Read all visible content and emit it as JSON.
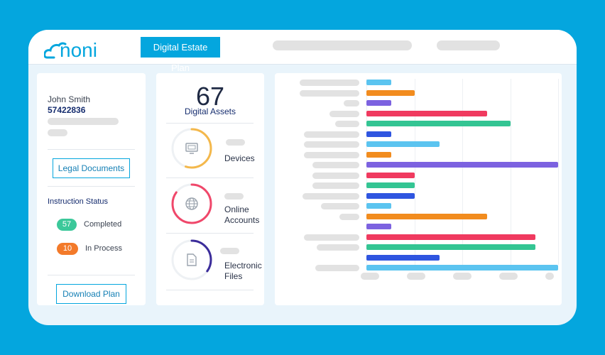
{
  "app": {
    "logo_text": "noni",
    "title": "Digital Estate Plan",
    "brand_color": "#04a6de"
  },
  "user": {
    "name": "John Smith",
    "id": "57422836"
  },
  "actions": {
    "legal_documents": "Legal Documents",
    "download_plan": "Download Plan"
  },
  "instruction_status": {
    "heading": "Instruction Status",
    "items": [
      {
        "count": "57",
        "label": "Completed",
        "color": "#3cc89a"
      },
      {
        "count": "10",
        "label": "In Process",
        "color": "#f37a2a"
      }
    ]
  },
  "assets": {
    "total": "67",
    "total_label": "Digital Assets",
    "categories": [
      {
        "label_line1": "Devices",
        "label_line2": "",
        "icon": "monitor-icon",
        "color": "#f4b84b",
        "fraction": 0.55
      },
      {
        "label_line1": "Online",
        "label_line2": "Accounts",
        "icon": "globe-icon",
        "color": "#f0476a",
        "fraction": 0.85
      },
      {
        "label_line1": "Electronic",
        "label_line2": "Files",
        "icon": "document-icon",
        "color": "#3b2c9a",
        "fraction": 0.35
      }
    ]
  },
  "chart_data": {
    "type": "bar",
    "orientation": "horizontal",
    "grid": true,
    "xlim": [
      0,
      1
    ],
    "values": [
      {
        "value": 0.13,
        "color": "#5bc4f0"
      },
      {
        "value": 0.25,
        "color": "#f28c1e"
      },
      {
        "value": 0.13,
        "color": "#7c62e0"
      },
      {
        "value": 0.63,
        "color": "#f03a5f"
      },
      {
        "value": 0.75,
        "color": "#34c593"
      },
      {
        "value": 0.13,
        "color": "#2f55e0"
      },
      {
        "value": 0.38,
        "color": "#5bc4f0"
      },
      {
        "value": 0.13,
        "color": "#f28c1e"
      },
      {
        "value": 1.0,
        "color": "#7c62e0"
      },
      {
        "value": 0.25,
        "color": "#f03a5f"
      },
      {
        "value": 0.25,
        "color": "#34c593"
      },
      {
        "value": 0.25,
        "color": "#2f55e0"
      },
      {
        "value": 0.13,
        "color": "#5bc4f0"
      },
      {
        "value": 0.63,
        "color": "#f28c1e"
      },
      {
        "value": 0.13,
        "color": "#7c62e0"
      },
      {
        "value": 0.88,
        "color": "#f03a5f"
      },
      {
        "value": 0.88,
        "color": "#34c593"
      },
      {
        "value": 0.38,
        "color": "#2f55e0"
      },
      {
        "value": 1.0,
        "color": "#5bc4f0"
      }
    ]
  }
}
